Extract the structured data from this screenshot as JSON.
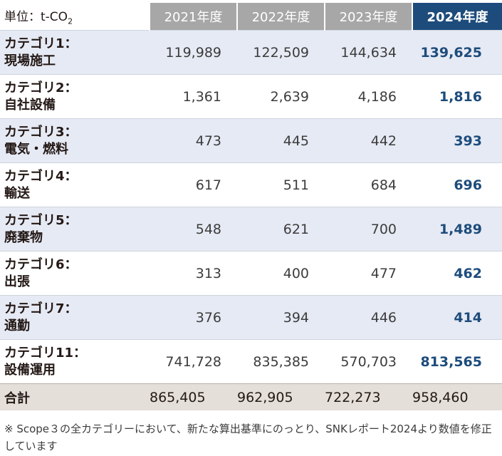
{
  "unit": "単位：t-CO",
  "unit_sub": "2",
  "years": [
    "2021年度",
    "2022年度",
    "2023年度",
    "2024年度"
  ],
  "rows": [
    {
      "label1": "カテゴリ1：",
      "label2": "現場施工",
      "values": [
        "119,989",
        "122,509",
        "144,634",
        "139,625"
      ]
    },
    {
      "label1": "カテゴリ2：",
      "label2": "自社設備",
      "values": [
        "1,361",
        "2,639",
        "4,186",
        "1,816"
      ]
    },
    {
      "label1": "カテゴリ3：",
      "label2": "電気・燃料",
      "values": [
        "473",
        "445",
        "442",
        "393"
      ]
    },
    {
      "label1": "カテゴリ4：",
      "label2": "輸送",
      "values": [
        "617",
        "511",
        "684",
        "696"
      ]
    },
    {
      "label1": "カテゴリ5：",
      "label2": "廃棄物",
      "values": [
        "548",
        "621",
        "700",
        "1,489"
      ]
    },
    {
      "label1": "カテゴリ6：",
      "label2": "出張",
      "values": [
        "313",
        "400",
        "477",
        "462"
      ]
    },
    {
      "label1": "カテゴリ7：",
      "label2": "通勤",
      "values": [
        "376",
        "394",
        "446",
        "414"
      ]
    },
    {
      "label1": "カテゴリ11：",
      "label2": "設備運用",
      "values": [
        "741,728",
        "835,385",
        "570,703",
        "813,565"
      ]
    }
  ],
  "total": {
    "label": "合計",
    "values": [
      "865,405",
      "962,905",
      "722,273",
      "958,460"
    ]
  },
  "footnote": "※ Scope３の全カテゴリーにおいて、新たな算出基準にのっとり、SNKレポート2024より数値を修正しています",
  "colors": {
    "header_gray": "#a7a7a7",
    "header_current": "#1d4c7c",
    "row_shade": "#e6eaf4",
    "total_bg": "#e4dfd9",
    "current_value": "#1d4c7c"
  }
}
